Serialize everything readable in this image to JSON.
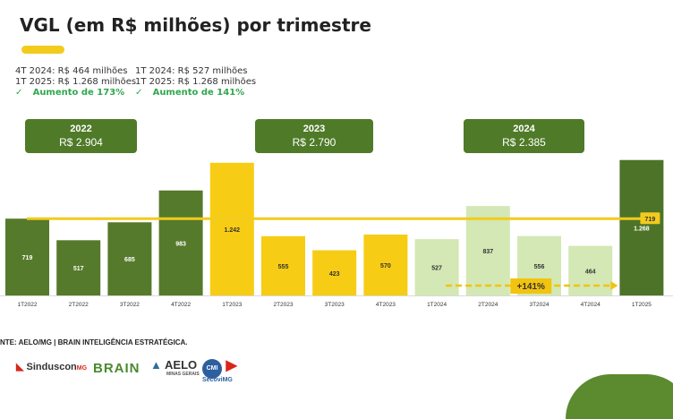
{
  "title": "VGL (em R$ milhões) por trimestre",
  "notes": {
    "left": {
      "line1": "4T 2024: R$ 464 milhões",
      "line2": "1T 2025: R$ 1.268 milhões",
      "check": "✓",
      "increase": "Aumento de 173%"
    },
    "right": {
      "line1": "1T 2024: R$ 527 milhões",
      "line2": "1T 2025: R$ 1.268 milhões",
      "check": "✓",
      "increase": "Aumento de 141%"
    }
  },
  "year_totals": [
    {
      "year": "2022",
      "value": "R$ 2.904"
    },
    {
      "year": "2023",
      "value": "R$ 2.790"
    },
    {
      "year": "2024",
      "value": "R$ 2.385"
    }
  ],
  "chart_data": {
    "type": "bar",
    "categories": [
      "1T2022",
      "2T2022",
      "3T2022",
      "4T2022",
      "1T2023",
      "2T2023",
      "3T2023",
      "4T2023",
      "1T2024",
      "2T2024",
      "3T2024",
      "4T2024",
      "1T2025"
    ],
    "values": [
      719,
      517,
      685,
      983,
      1242,
      555,
      423,
      570,
      527,
      837,
      556,
      464,
      1268
    ],
    "value_labels": [
      "719",
      "517",
      "685",
      "983",
      "1.242",
      "555",
      "423",
      "570",
      "527",
      "837",
      "556",
      "464",
      "1.268"
    ],
    "ylim": [
      0,
      1400
    ],
    "reference_line": {
      "value": 719,
      "label": "719",
      "color": "#F2CB1D"
    },
    "annotation": {
      "label": "+141%",
      "from": "1T2024",
      "to": "1T2025"
    },
    "colors": {
      "2022": "#567A2B",
      "2023": "#F7CC14",
      "2024": "#D3E8B4",
      "2025": "#4D7328"
    }
  },
  "source": "NTE: AELO/MG | BRAIN INTELIGÊNCIA ESTRATÉGICA.",
  "logos": {
    "sinduscon": "Sinduscon",
    "sinduscon_sup": "MG",
    "brain": "BRAIN",
    "aelo": "AELO",
    "aelo_sub": "MINAS GERAIS",
    "cmi": "CMI",
    "secovi": "SecoviMG"
  }
}
